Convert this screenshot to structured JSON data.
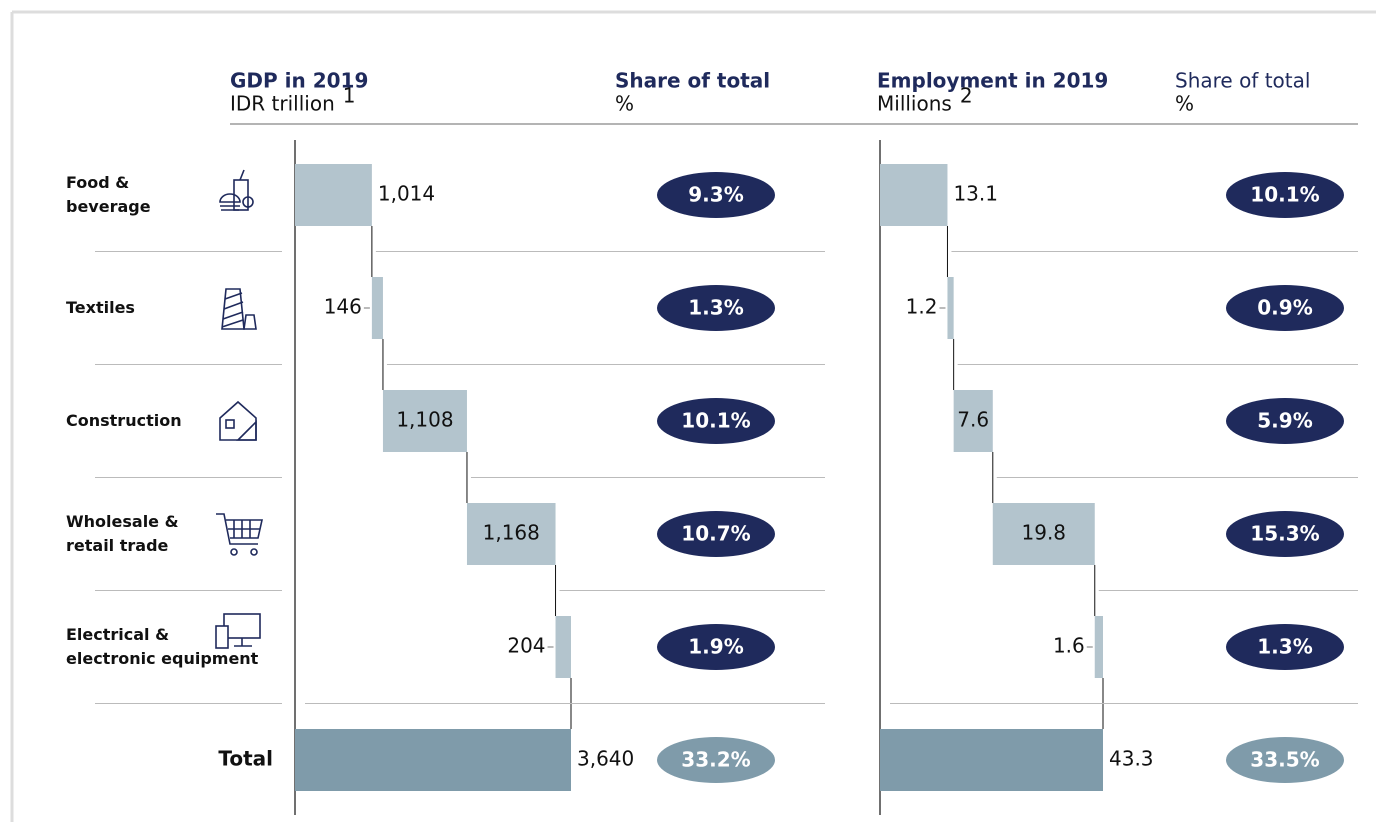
{
  "chart_data": {
    "type": "waterfall",
    "categories": [
      "Food &\nbeverage",
      "Textiles",
      "Construction",
      "Wholesale &\nretail trade",
      "Electrical &\nelectronic equipment"
    ],
    "total_category": "Total",
    "bar_color": "#b3c4cd",
    "total_color": "#7f9baa",
    "pill_color": "#1f2a5c",
    "pill_total_color": "#7f9baa",
    "panels": [
      {
        "title": "GDP in 2019",
        "unit": "IDR trillion",
        "footnote": "1",
        "values": [
          1014,
          146,
          1108,
          1168,
          204
        ],
        "value_labels": [
          "1,014",
          "146",
          "1,108",
          "1,168",
          "204"
        ],
        "total": 3640,
        "total_label": "3,640",
        "share_title": "Share of total",
        "share_unit": "%",
        "shares": [
          9.3,
          1.3,
          10.1,
          10.7,
          1.9
        ],
        "share_labels": [
          "9.3%",
          "1.3%",
          "10.1%",
          "10.7%",
          "1.9%"
        ],
        "share_total": 33.2,
        "share_total_label": "33.2%"
      },
      {
        "title": "Employment in 2019",
        "unit": "Millions",
        "footnote": "2",
        "values": [
          13.1,
          1.2,
          7.6,
          19.8,
          1.6
        ],
        "total": 43.3,
        "share_title": "Share of total",
        "share_unit": "%",
        "shares": [
          10.1,
          0.9,
          5.9,
          15.3,
          1.3
        ],
        "share_labels": [
          "10.1%",
          "0.9%",
          "5.9%",
          "15.3%",
          "1.3%"
        ],
        "share_total": 33.5,
        "share_total_label": "33.5%"
      }
    ]
  }
}
